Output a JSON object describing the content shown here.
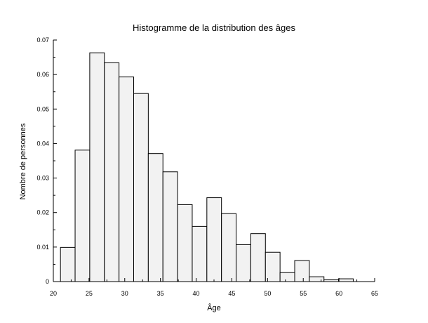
{
  "chart_data": {
    "type": "bar",
    "title": "Histogramme de la distribution des âges",
    "xlabel": "Âge",
    "ylabel": "Nombre de personnes",
    "xlim": [
      20,
      65
    ],
    "ylim": [
      0,
      0.07
    ],
    "xticks": [
      20,
      25,
      30,
      35,
      40,
      45,
      50,
      55,
      60,
      65
    ],
    "yticks": [
      0,
      0.01,
      0.02,
      0.03,
      0.04,
      0.05,
      0.06,
      0.07
    ],
    "ytick_labels": [
      "0",
      "0.01",
      "0.02",
      "0.03",
      "0.04",
      "0.05",
      "0.06",
      "0.07"
    ],
    "grid": false,
    "bin_width": 2.05,
    "bin_starts": [
      21,
      23.05,
      25.1,
      27.15,
      29.2,
      31.25,
      33.3,
      35.35,
      37.4,
      39.45,
      41.5,
      43.55,
      45.6,
      47.65,
      49.7,
      51.75,
      53.8,
      55.85,
      57.9,
      59.95
    ],
    "values": [
      0.0099,
      0.0381,
      0.0663,
      0.0634,
      0.0593,
      0.0545,
      0.0371,
      0.0318,
      0.0223,
      0.016,
      0.0243,
      0.0197,
      0.0107,
      0.0139,
      0.0085,
      0.0026,
      0.0061,
      0.0014,
      0.0005,
      0.0008
    ]
  }
}
